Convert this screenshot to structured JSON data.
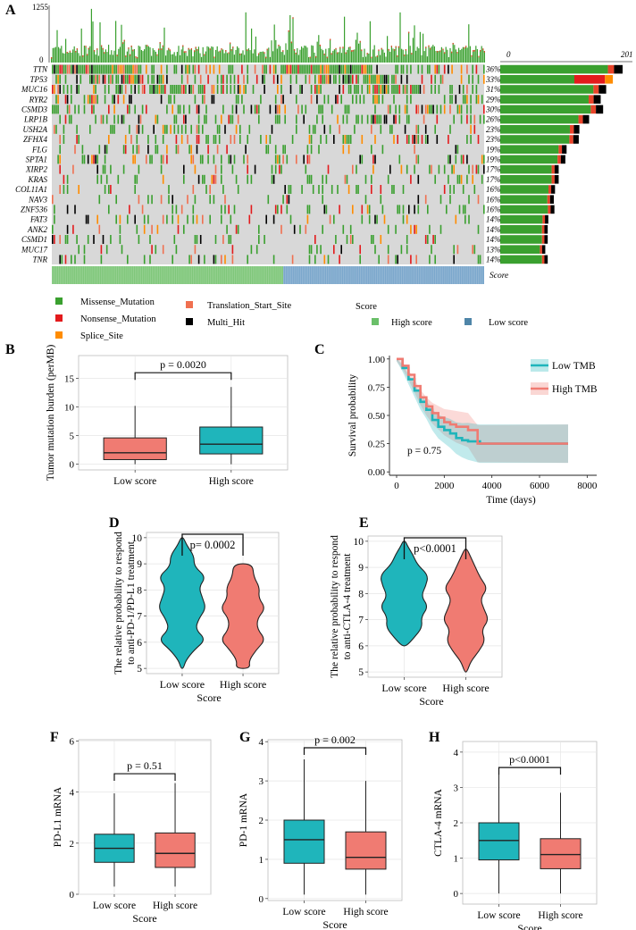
{
  "panel_letters": {
    "A": "A",
    "B": "B",
    "C": "C",
    "D": "D",
    "E": "E",
    "F": "F",
    "G": "G",
    "H": "H"
  },
  "chart_data": [
    {
      "panel": "A",
      "type": "heatmap",
      "title": "Oncoplot",
      "tmb_axis": {
        "max_label": "1255",
        "min_label": "0"
      },
      "right_axis": {
        "min_label": "0",
        "max_label": "201"
      },
      "genes": [
        "TTN",
        "TP53",
        "MUC16",
        "RYR2",
        "CSMD3",
        "LRP1B",
        "USH2A",
        "ZFHX4",
        "FLG",
        "SPTA1",
        "XIRP2",
        "KRAS",
        "COL11A1",
        "NAV3",
        "ZNF536",
        "FAT3",
        "ANK2",
        "CSMD1",
        "MUC17",
        "TNR"
      ],
      "percent_labels": [
        "36%",
        "33%",
        "31%",
        "29%",
        "30%",
        "26%",
        "23%",
        "23%",
        "19%",
        "19%",
        "17%",
        "17%",
        "16%",
        "16%",
        "16%",
        "14%",
        "14%",
        "14%",
        "13%",
        "14%"
      ],
      "counts": [
        201,
        185,
        174,
        165,
        169,
        146,
        130,
        129,
        109,
        107,
        96,
        96,
        90,
        88,
        89,
        79,
        78,
        78,
        74,
        78
      ],
      "score_track_label": "Score",
      "legend": {
        "variant_types": [
          {
            "label": "Missense_Mutation",
            "color": "#3aa02f"
          },
          {
            "label": "Nonsense_Mutation",
            "color": "#e31a1c"
          },
          {
            "label": "Splice_Site",
            "color": "#ff8c00"
          },
          {
            "label": "Translation_Start_Site",
            "color": "#f07050"
          },
          {
            "label": "Multi_Hit",
            "color": "#000000"
          }
        ],
        "score_title": "Score",
        "score_groups": [
          {
            "label": "High score",
            "color": "#6abf69"
          },
          {
            "label": "Low score",
            "color": "#4f85a8"
          }
        ]
      }
    },
    {
      "panel": "B",
      "type": "box",
      "ylabel": "Tumor mutation burden (perMB)",
      "categories": [
        "Low score",
        "High score"
      ],
      "ylim": [
        -1,
        19
      ],
      "yticks": [
        0,
        5,
        10,
        15
      ],
      "series": [
        {
          "name": "Low score",
          "color": "#f07b72",
          "q1": 0.8,
          "median": 2.0,
          "q3": 4.6,
          "whisker_low": 0,
          "whisker_high": 10.2
        },
        {
          "name": "High score",
          "color": "#1fb5bb",
          "q1": 1.8,
          "median": 3.5,
          "q3": 6.5,
          "whisker_low": 0,
          "whisker_high": 13.5
        }
      ],
      "pvalue": "p = 0.0020"
    },
    {
      "panel": "C",
      "type": "line",
      "ylabel": "Survival probability",
      "xlabel": "Time (days)",
      "xlim": [
        -300,
        8400
      ],
      "ylim": [
        -0.03,
        1.03
      ],
      "xticks": [
        0,
        2000,
        4000,
        6000,
        8000
      ],
      "yticks": [
        "0.00",
        "0.25",
        "0.50",
        "0.75",
        "1.00"
      ],
      "series": [
        {
          "name": "Low TMB",
          "color": "#1fb5bb",
          "x": [
            0,
            250,
            500,
            750,
            1000,
            1250,
            1500,
            1750,
            2000,
            2250,
            2500,
            2750,
            3000,
            3500,
            7200
          ],
          "y": [
            1.0,
            0.92,
            0.82,
            0.72,
            0.62,
            0.55,
            0.46,
            0.4,
            0.37,
            0.34,
            0.3,
            0.28,
            0.27,
            0.25,
            0.25
          ]
        },
        {
          "name": "High TMB",
          "color": "#f07b72",
          "x": [
            0,
            250,
            500,
            750,
            1000,
            1250,
            1500,
            1750,
            2000,
            2250,
            2500,
            3000,
            3400,
            7200
          ],
          "y": [
            1.0,
            0.94,
            0.86,
            0.76,
            0.66,
            0.58,
            0.52,
            0.48,
            0.44,
            0.42,
            0.4,
            0.37,
            0.25,
            0.25
          ]
        }
      ],
      "pvalue": "p = 0.75"
    },
    {
      "panel": "D",
      "type": "violin",
      "ylabel_lines": [
        "The relative probability to respond",
        "to anti-PD-1/PD-L1 treatment"
      ],
      "xlabel": "Score",
      "categories": [
        "Low score",
        "High score"
      ],
      "ylim": [
        4.8,
        10.2
      ],
      "yticks": [
        5,
        6,
        7,
        8,
        9,
        10
      ],
      "series": [
        {
          "name": "Low score",
          "color": "#1fb5bb",
          "y": [
            5,
            5.3,
            5.7,
            6.1,
            6.5,
            6.9,
            7.3,
            7.7,
            8.1,
            8.5,
            8.9,
            9.3,
            9.7,
            10
          ],
          "w": [
            0.05,
            0.15,
            0.5,
            1.0,
            0.55,
            0.7,
            1.0,
            0.85,
            0.7,
            1.0,
            0.5,
            0.5,
            0.2,
            0.05
          ]
        },
        {
          "name": "High score",
          "color": "#f07b72",
          "y": [
            5,
            5.3,
            5.7,
            6.1,
            6.5,
            6.9,
            7.3,
            7.7,
            8.1,
            8.5,
            9.0
          ],
          "w": [
            0.3,
            0.25,
            0.55,
            0.95,
            0.6,
            0.6,
            0.95,
            0.65,
            0.7,
            0.45,
            0.4
          ]
        }
      ],
      "pvalue": "p= 0.0002"
    },
    {
      "panel": "E",
      "type": "violin",
      "ylabel_lines": [
        "The relative probability to respond",
        "to anti-CTLA-4 treatment"
      ],
      "xlabel": "Score",
      "categories": [
        "Low score",
        "High score"
      ],
      "ylim": [
        4.8,
        10.2
      ],
      "yticks": [
        5,
        6,
        7,
        8,
        9,
        10
      ],
      "series": [
        {
          "name": "Low score",
          "color": "#1fb5bb",
          "y": [
            6,
            6.3,
            6.7,
            7.1,
            7.5,
            7.9,
            8.3,
            8.7,
            9.1,
            9.5,
            9.8,
            10
          ],
          "w": [
            0.1,
            0.4,
            0.75,
            0.7,
            1.0,
            0.7,
            0.9,
            1.0,
            0.55,
            0.35,
            0.15,
            0.05
          ]
        },
        {
          "name": "High score",
          "color": "#f07b72",
          "y": [
            5,
            5.4,
            5.8,
            6.2,
            6.6,
            7.0,
            7.4,
            7.8,
            8.2,
            8.6,
            9.0,
            9.4,
            9.7
          ],
          "w": [
            0.05,
            0.2,
            0.55,
            0.8,
            0.65,
            0.95,
            0.75,
            0.6,
            0.9,
            0.6,
            0.4,
            0.2,
            0.05
          ]
        }
      ],
      "pvalue": "p<0.0001"
    },
    {
      "panel": "F",
      "type": "box",
      "ylabel": "PD-L1 mRNA",
      "xlabel": "Score",
      "categories": [
        "Low score",
        "High score"
      ],
      "ylim": [
        0,
        6.05
      ],
      "yticks": [
        0,
        2,
        4,
        6
      ],
      "series": [
        {
          "name": "Low score",
          "color": "#1fb5bb",
          "q1": 1.25,
          "median": 1.8,
          "q3": 2.35,
          "whisker_low": 0.3,
          "whisker_high": 3.95
        },
        {
          "name": "High score",
          "color": "#f07b72",
          "q1": 1.05,
          "median": 1.6,
          "q3": 2.4,
          "whisker_low": 0.3,
          "whisker_high": 4.35
        }
      ],
      "pvalue": "p = 0.51"
    },
    {
      "panel": "G",
      "type": "box",
      "ylabel": "PD-1 mRNA",
      "xlabel": "Score",
      "categories": [
        "Low score",
        "High score"
      ],
      "ylim": [
        -0.05,
        4.05
      ],
      "yticks": [
        0,
        1,
        2,
        3,
        4
      ],
      "series": [
        {
          "name": "Low score",
          "color": "#1fb5bb",
          "q1": 0.9,
          "median": 1.5,
          "q3": 2.0,
          "whisker_low": 0.1,
          "whisker_high": 3.55
        },
        {
          "name": "High score",
          "color": "#f07b72",
          "q1": 0.75,
          "median": 1.05,
          "q3": 1.7,
          "whisker_low": 0.1,
          "whisker_high": 3.0
        }
      ],
      "pvalue": "p = 0.002"
    },
    {
      "panel": "H",
      "type": "box",
      "ylabel": "CTLA-4 mRNA",
      "xlabel": "Score",
      "categories": [
        "Low score",
        "High score"
      ],
      "ylim": [
        -0.3,
        4.3
      ],
      "yticks": [
        0,
        1,
        2,
        3,
        4
      ],
      "series": [
        {
          "name": "Low score",
          "color": "#1fb5bb",
          "q1": 0.95,
          "median": 1.5,
          "q3": 2.0,
          "whisker_low": 0,
          "whisker_high": 3.5
        },
        {
          "name": "High score",
          "color": "#f07b72",
          "q1": 0.7,
          "median": 1.1,
          "q3": 1.55,
          "whisker_low": 0,
          "whisker_high": 2.85
        }
      ],
      "pvalue": "p<0.0001"
    }
  ]
}
